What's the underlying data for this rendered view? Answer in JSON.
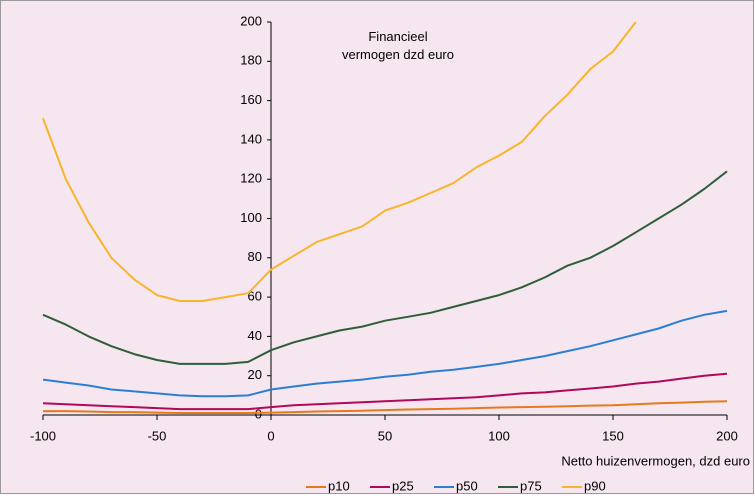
{
  "chart_data": {
    "type": "line",
    "annotation": "Financieel vermogen dzd euro",
    "x_label": "Netto huizenvermogen, dzd euro",
    "x": [
      -100,
      -90,
      -80,
      -70,
      -60,
      -50,
      -40,
      -30,
      -20,
      -10,
      0,
      10,
      20,
      30,
      40,
      50,
      60,
      70,
      80,
      90,
      100,
      110,
      120,
      130,
      140,
      150,
      160,
      170,
      180,
      190,
      200
    ],
    "series": [
      {
        "name": "p10",
        "color": "#e8781c",
        "values": [
          2,
          2,
          1.8,
          1.5,
          1.5,
          1.2,
          1,
          1,
          1,
          1,
          1.2,
          1.5,
          1.8,
          2,
          2.2,
          2.5,
          2.8,
          3,
          3.2,
          3.5,
          3.8,
          4,
          4.2,
          4.5,
          4.8,
          5,
          5.5,
          6,
          6.3,
          6.7,
          7
        ]
      },
      {
        "name": "p25",
        "color": "#b0085a",
        "values": [
          6,
          5.5,
          5,
          4.5,
          4,
          3.5,
          3,
          3,
          3,
          3,
          4,
          5,
          5.5,
          6,
          6.5,
          7,
          7.5,
          8,
          8.5,
          9,
          10,
          11,
          11.5,
          12.5,
          13.5,
          14.5,
          16,
          17,
          18.5,
          20,
          21
        ]
      },
      {
        "name": "p50",
        "color": "#2a7fd4",
        "values": [
          18,
          16.5,
          15,
          13,
          12,
          11,
          10,
          9.5,
          9.5,
          10,
          13,
          14.5,
          16,
          17,
          18,
          19.5,
          20.5,
          22,
          23,
          24.5,
          26,
          28,
          30,
          32.5,
          35,
          38,
          41,
          44,
          48,
          51,
          53
        ]
      },
      {
        "name": "p75",
        "color": "#2e5e3a",
        "values": [
          51,
          46,
          40,
          35,
          31,
          28,
          26,
          26,
          26,
          27,
          33,
          37,
          40,
          43,
          45,
          48,
          50,
          52,
          55,
          58,
          61,
          65,
          70,
          76,
          80,
          86,
          93,
          100,
          107,
          115,
          124
        ]
      },
      {
        "name": "p90",
        "color": "#f7b52c",
        "values": [
          151,
          120,
          98,
          80,
          69,
          61,
          58,
          58,
          60,
          62,
          74,
          81,
          88,
          92,
          96,
          104,
          108,
          113,
          118,
          126,
          132,
          139,
          152,
          163,
          176,
          185,
          200,
          null,
          null,
          null,
          null
        ]
      }
    ],
    "xlim": [
      -100,
      200
    ],
    "xticks": [
      -100,
      -50,
      0,
      50,
      100,
      150,
      200
    ],
    "ylim": [
      0,
      200
    ],
    "yticks": [
      0,
      20,
      40,
      60,
      80,
      100,
      120,
      140,
      160,
      180,
      200
    ],
    "grid": false
  }
}
